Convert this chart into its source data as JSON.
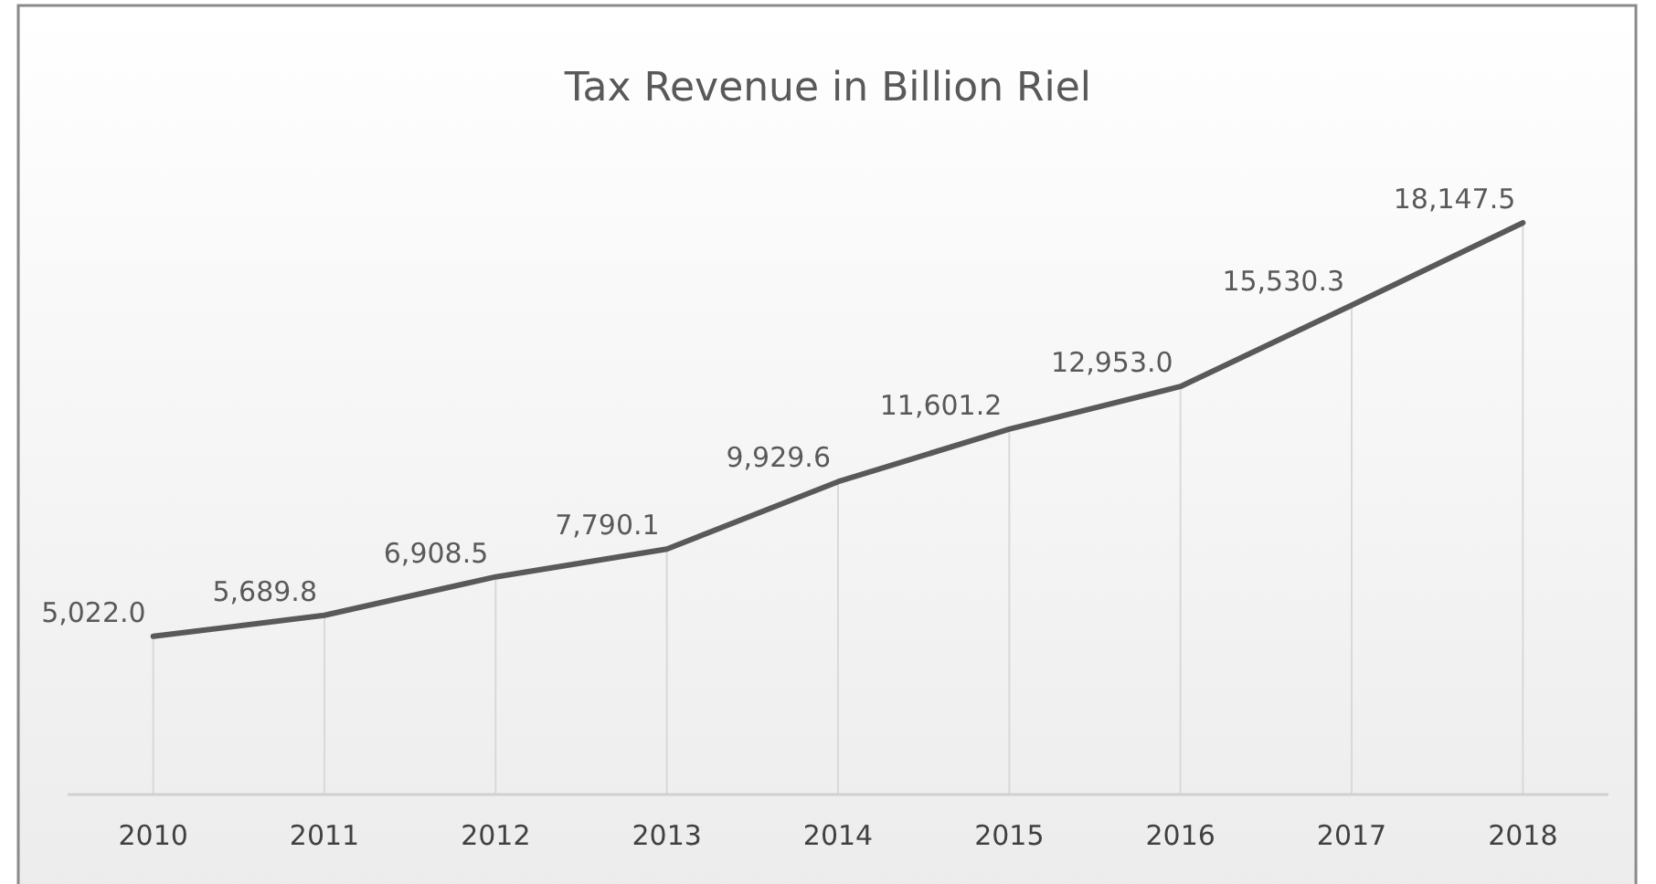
{
  "chart_data": {
    "type": "line",
    "title": "Tax Revenue in Billion Riel",
    "categories": [
      "2010",
      "2011",
      "2012",
      "2013",
      "2014",
      "2015",
      "2016",
      "2017",
      "2018"
    ],
    "series": [
      {
        "color": "#595959",
        "values": [
          5022.0,
          5689.8,
          6908.5,
          7790.1,
          9929.6,
          11601.2,
          12953.0,
          15530.3,
          18147.5
        ],
        "value_labels": [
          "5,022.0",
          "5,689.8",
          "6,908.5",
          "7,790.1",
          "9,929.6",
          "11,601.2",
          "12,953.0",
          "15,530.3",
          "18,147.5"
        ]
      }
    ],
    "grid": "x",
    "marker": "none",
    "line_style": "solid",
    "tick_labels": "x"
  }
}
